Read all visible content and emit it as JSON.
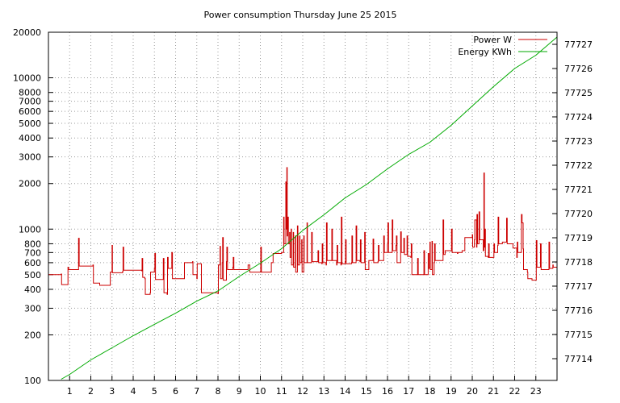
{
  "chart_data": {
    "type": "line",
    "title": "Power consumption Thursday June 25 2015",
    "x_ticks": [
      "1",
      "2",
      "3",
      "4",
      "5",
      "6",
      "7",
      "8",
      "9",
      "10",
      "11",
      "12",
      "13",
      "14",
      "15",
      "16",
      "17",
      "18",
      "19",
      "20",
      "21",
      "22",
      "23"
    ],
    "xlim": [
      0,
      24
    ],
    "y_left": {
      "scale": "log",
      "ylim": [
        100,
        20000
      ],
      "ticks": [
        100,
        200,
        300,
        400,
        500,
        600,
        700,
        800,
        1000,
        2000,
        3000,
        4000,
        5000,
        6000,
        7000,
        8000,
        10000,
        20000
      ],
      "tick_labels": [
        "100",
        "200",
        "300",
        "400",
        "500",
        "600",
        "700",
        "800",
        "1000",
        "2000",
        "3000",
        "4000",
        "5000",
        "6000",
        "7000",
        "8000",
        "10000",
        "20000"
      ]
    },
    "y_right": {
      "scale": "linear",
      "ylim": [
        77713.1,
        77727.5
      ],
      "ticks": [
        77714,
        77715,
        77716,
        77717,
        77718,
        77719,
        77720,
        77721,
        77722,
        77723,
        77724,
        77725,
        77726,
        77727
      ],
      "tick_labels": [
        "77714",
        "77715",
        "77716",
        "77717",
        "77718",
        "77719",
        "77720",
        "77721",
        "77722",
        "77723",
        "77724",
        "77725",
        "77726",
        "77727"
      ]
    },
    "grid": true,
    "legend_position": "top-right",
    "series": [
      {
        "name": "Power W",
        "color": "#cc0000",
        "axis": "left",
        "step": true,
        "points": [
          [
            0.0,
            500
          ],
          [
            0.6,
            505
          ],
          [
            0.62,
            430
          ],
          [
            0.9,
            430
          ],
          [
            0.92,
            560
          ],
          [
            0.95,
            540
          ],
          [
            1.4,
            540
          ],
          [
            1.42,
            870
          ],
          [
            1.45,
            570
          ],
          [
            2.1,
            580
          ],
          [
            2.12,
            440
          ],
          [
            2.4,
            440
          ],
          [
            2.42,
            425
          ],
          [
            2.9,
            425
          ],
          [
            2.92,
            520
          ],
          [
            3.0,
            780
          ],
          [
            3.02,
            515
          ],
          [
            3.5,
            525
          ],
          [
            3.52,
            760
          ],
          [
            3.55,
            535
          ],
          [
            4.4,
            530
          ],
          [
            4.42,
            640
          ],
          [
            4.45,
            480
          ],
          [
            4.55,
            470
          ],
          [
            4.57,
            370
          ],
          [
            4.8,
            380
          ],
          [
            4.82,
            520
          ],
          [
            5.0,
            550
          ],
          [
            5.02,
            690
          ],
          [
            5.05,
            465
          ],
          [
            5.4,
            465
          ],
          [
            5.42,
            640
          ],
          [
            5.45,
            380
          ],
          [
            5.6,
            370
          ],
          [
            5.62,
            650
          ],
          [
            5.65,
            550
          ],
          [
            5.8,
            550
          ],
          [
            5.82,
            700
          ],
          [
            5.85,
            470
          ],
          [
            6.4,
            470
          ],
          [
            6.42,
            600
          ],
          [
            6.8,
            610
          ],
          [
            6.82,
            500
          ],
          [
            7.0,
            470
          ],
          [
            7.02,
            590
          ],
          [
            7.2,
            590
          ],
          [
            7.22,
            380
          ],
          [
            8.0,
            375
          ],
          [
            8.02,
            580
          ],
          [
            8.1,
            770
          ],
          [
            8.12,
            470
          ],
          [
            8.2,
            600
          ],
          [
            8.22,
            880
          ],
          [
            8.25,
            460
          ],
          [
            8.4,
            610
          ],
          [
            8.42,
            760
          ],
          [
            8.45,
            540
          ],
          [
            8.7,
            560
          ],
          [
            8.72,
            650
          ],
          [
            8.75,
            540
          ],
          [
            9.4,
            540
          ],
          [
            9.42,
            580
          ],
          [
            9.5,
            520
          ],
          [
            10.0,
            520
          ],
          [
            10.02,
            760
          ],
          [
            10.05,
            520
          ],
          [
            10.5,
            520
          ],
          [
            10.52,
            600
          ],
          [
            10.6,
            690
          ],
          [
            11.0,
            700
          ],
          [
            11.02,
            700
          ],
          [
            11.1,
            1200
          ],
          [
            11.12,
            800
          ],
          [
            11.2,
            2050
          ],
          [
            11.22,
            1000
          ],
          [
            11.25,
            2550
          ],
          [
            11.27,
            900
          ],
          [
            11.3,
            1200
          ],
          [
            11.32,
            800
          ],
          [
            11.38,
            950
          ],
          [
            11.4,
            650
          ],
          [
            11.45,
            1000
          ],
          [
            11.47,
            580
          ],
          [
            11.55,
            950
          ],
          [
            11.57,
            560
          ],
          [
            11.65,
            900
          ],
          [
            11.67,
            520
          ],
          [
            11.75,
            1050
          ],
          [
            11.77,
            580
          ],
          [
            11.85,
            900
          ],
          [
            11.87,
            600
          ],
          [
            11.95,
            850
          ],
          [
            11.97,
            520
          ],
          [
            12.05,
            900
          ],
          [
            12.07,
            600
          ],
          [
            12.2,
            1100
          ],
          [
            12.22,
            600
          ],
          [
            12.4,
            600
          ],
          [
            12.42,
            950
          ],
          [
            12.45,
            610
          ],
          [
            12.7,
            610
          ],
          [
            12.72,
            720
          ],
          [
            12.75,
            600
          ],
          [
            12.9,
            590
          ],
          [
            12.92,
            800
          ],
          [
            12.95,
            600
          ],
          [
            13.1,
            580
          ],
          [
            13.12,
            1100
          ],
          [
            13.15,
            620
          ],
          [
            13.35,
            620
          ],
          [
            13.37,
            1000
          ],
          [
            13.4,
            620
          ],
          [
            13.6,
            580
          ],
          [
            13.62,
            780
          ],
          [
            13.65,
            600
          ],
          [
            13.8,
            580
          ],
          [
            13.82,
            1200
          ],
          [
            13.85,
            590
          ],
          [
            14.0,
            610
          ],
          [
            14.02,
            850
          ],
          [
            14.05,
            590
          ],
          [
            14.3,
            600
          ],
          [
            14.32,
            900
          ],
          [
            14.35,
            600
          ],
          [
            14.5,
            600
          ],
          [
            14.52,
            1050
          ],
          [
            14.55,
            620
          ],
          [
            14.7,
            610
          ],
          [
            14.72,
            850
          ],
          [
            14.75,
            600
          ],
          [
            14.9,
            600
          ],
          [
            14.92,
            950
          ],
          [
            14.95,
            540
          ],
          [
            15.1,
            540
          ],
          [
            15.12,
            620
          ],
          [
            15.3,
            620
          ],
          [
            15.32,
            860
          ],
          [
            15.35,
            600
          ],
          [
            15.55,
            610
          ],
          [
            15.57,
            780
          ],
          [
            15.6,
            620
          ],
          [
            15.8,
            620
          ],
          [
            15.82,
            900
          ],
          [
            15.85,
            700
          ],
          [
            16.0,
            800
          ],
          [
            16.02,
            1100
          ],
          [
            16.05,
            700
          ],
          [
            16.2,
            700
          ],
          [
            16.22,
            1150
          ],
          [
            16.25,
            720
          ],
          [
            16.4,
            780
          ],
          [
            16.42,
            900
          ],
          [
            16.45,
            600
          ],
          [
            16.6,
            600
          ],
          [
            16.62,
            960
          ],
          [
            16.65,
            700
          ],
          [
            16.75,
            700
          ],
          [
            16.77,
            870
          ],
          [
            16.8,
            680
          ],
          [
            16.9,
            680
          ],
          [
            16.92,
            900
          ],
          [
            16.95,
            660
          ],
          [
            17.1,
            650
          ],
          [
            17.12,
            800
          ],
          [
            17.15,
            500
          ],
          [
            17.4,
            500
          ],
          [
            17.42,
            640
          ],
          [
            17.45,
            500
          ],
          [
            17.7,
            500
          ],
          [
            17.72,
            720
          ],
          [
            17.75,
            500
          ],
          [
            17.9,
            500
          ],
          [
            17.92,
            690
          ],
          [
            17.95,
            550
          ],
          [
            18.0,
            820
          ],
          [
            18.02,
            540
          ],
          [
            18.1,
            830
          ],
          [
            18.12,
            500
          ],
          [
            18.2,
            600
          ],
          [
            18.22,
            800
          ],
          [
            18.25,
            620
          ],
          [
            18.6,
            620
          ],
          [
            18.62,
            1150
          ],
          [
            18.65,
            680
          ],
          [
            18.7,
            680
          ],
          [
            18.72,
            720
          ],
          [
            19.0,
            720
          ],
          [
            19.02,
            1000
          ],
          [
            19.05,
            700
          ],
          [
            19.3,
            690
          ],
          [
            19.32,
            700
          ],
          [
            19.5,
            700
          ],
          [
            19.52,
            720
          ],
          [
            19.65,
            880
          ],
          [
            20.0,
            920
          ],
          [
            20.02,
            760
          ],
          [
            20.1,
            850
          ],
          [
            20.12,
            1150
          ],
          [
            20.2,
            760
          ],
          [
            20.22,
            1250
          ],
          [
            20.25,
            800
          ],
          [
            20.3,
            800
          ],
          [
            20.32,
            1300
          ],
          [
            20.35,
            850
          ],
          [
            20.5,
            850
          ],
          [
            20.52,
            720
          ],
          [
            20.55,
            2350
          ],
          [
            20.57,
            760
          ],
          [
            20.6,
            1000
          ],
          [
            20.62,
            660
          ],
          [
            20.75,
            650
          ],
          [
            20.77,
            800
          ],
          [
            20.8,
            650
          ],
          [
            21.0,
            650
          ],
          [
            21.02,
            800
          ],
          [
            21.05,
            700
          ],
          [
            21.2,
            780
          ],
          [
            21.22,
            1200
          ],
          [
            21.25,
            800
          ],
          [
            21.4,
            800
          ],
          [
            21.42,
            820
          ],
          [
            21.6,
            820
          ],
          [
            21.62,
            1180
          ],
          [
            21.65,
            800
          ],
          [
            21.9,
            800
          ],
          [
            21.92,
            750
          ],
          [
            22.1,
            650
          ],
          [
            22.12,
            820
          ],
          [
            22.15,
            700
          ],
          [
            22.3,
            700
          ],
          [
            22.32,
            1250
          ],
          [
            22.35,
            1100
          ],
          [
            22.4,
            740
          ],
          [
            22.42,
            540
          ],
          [
            22.6,
            520
          ],
          [
            22.62,
            470
          ],
          [
            22.8,
            470
          ],
          [
            22.82,
            460
          ],
          [
            23.0,
            460
          ],
          [
            23.02,
            840
          ],
          [
            23.05,
            560
          ],
          [
            23.2,
            560
          ],
          [
            23.22,
            800
          ],
          [
            23.25,
            540
          ],
          [
            23.6,
            540
          ],
          [
            23.62,
            820
          ],
          [
            23.65,
            550
          ],
          [
            23.8,
            580
          ],
          [
            23.82,
            560
          ],
          [
            24.0,
            570
          ]
        ]
      },
      {
        "name": "Energy KWh",
        "color": "#00aa00",
        "axis": "right",
        "step": false,
        "points": [
          [
            0.6,
            77713.15
          ],
          [
            1.0,
            77713.35
          ],
          [
            1.5,
            77713.65
          ],
          [
            2.0,
            77713.95
          ],
          [
            3.0,
            77714.45
          ],
          [
            4.0,
            77714.95
          ],
          [
            5.0,
            77715.42
          ],
          [
            6.0,
            77715.88
          ],
          [
            7.0,
            77716.38
          ],
          [
            8.0,
            77716.8
          ],
          [
            9.0,
            77717.4
          ],
          [
            10.0,
            77717.95
          ],
          [
            11.0,
            77718.55
          ],
          [
            12.0,
            77719.3
          ],
          [
            13.0,
            77719.95
          ],
          [
            14.0,
            77720.65
          ],
          [
            15.0,
            77721.2
          ],
          [
            16.0,
            77721.85
          ],
          [
            17.0,
            77722.45
          ],
          [
            18.0,
            77722.95
          ],
          [
            19.0,
            77723.65
          ],
          [
            20.0,
            77724.45
          ],
          [
            21.0,
            77725.25
          ],
          [
            22.0,
            77726.0
          ],
          [
            23.0,
            77726.55
          ],
          [
            24.0,
            77727.3
          ]
        ]
      }
    ]
  }
}
